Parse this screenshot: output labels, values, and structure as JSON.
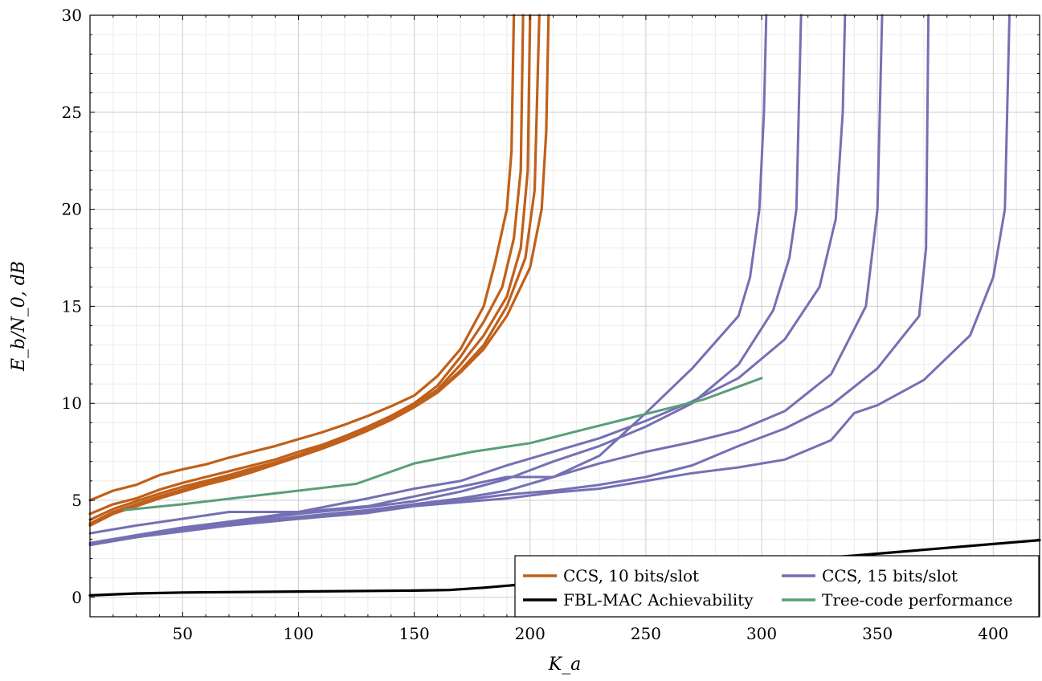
{
  "chart_data": {
    "type": "line",
    "xlabel": "K_a",
    "ylabel": "E_b/N_0, dB",
    "xlim": [
      10,
      420
    ],
    "ylim": [
      -1,
      30
    ],
    "xticks": [
      50,
      100,
      150,
      200,
      250,
      300,
      350,
      400
    ],
    "yticks": [
      0,
      5,
      10,
      15,
      20,
      25,
      30
    ],
    "grid": true,
    "minor_grid": true,
    "legend_position": "bottom-right",
    "colors": {
      "ccs10": "#c0601a",
      "ccs15": "#7570b3",
      "fbl": "#000000",
      "tree": "#5a9e78"
    },
    "legend": [
      {
        "label": "CCS, 10 bits/slot",
        "color": "#c0601a"
      },
      {
        "label": "CCS, 15 bits/slot",
        "color": "#7570b3"
      },
      {
        "label": "FBL-MAC Achievability",
        "color": "#000000"
      },
      {
        "label": "Tree-code performance",
        "color": "#5a9e78"
      }
    ],
    "series": [
      {
        "group": "ccs10",
        "x": [
          10,
          20,
          30,
          40,
          50,
          60,
          70,
          80,
          90,
          100,
          110,
          120,
          130,
          140,
          150,
          160,
          170,
          180,
          185,
          190,
          192,
          193
        ],
        "y": [
          5.0,
          5.5,
          5.8,
          6.3,
          6.6,
          6.85,
          7.2,
          7.5,
          7.8,
          8.15,
          8.5,
          8.9,
          9.35,
          9.85,
          10.4,
          11.4,
          12.8,
          15.0,
          17.3,
          20.0,
          23.0,
          30.0
        ]
      },
      {
        "group": "ccs10",
        "x": [
          10,
          20,
          30,
          40,
          50,
          60,
          70,
          80,
          90,
          100,
          110,
          120,
          130,
          140,
          150,
          160,
          170,
          180,
          188,
          193,
          196,
          197
        ],
        "y": [
          4.3,
          4.8,
          5.1,
          5.55,
          5.9,
          6.2,
          6.5,
          6.8,
          7.1,
          7.5,
          7.85,
          8.3,
          8.8,
          9.35,
          10.0,
          10.9,
          12.4,
          14.2,
          16.0,
          18.5,
          22.0,
          30.0
        ]
      },
      {
        "group": "ccs10",
        "x": [
          10,
          20,
          30,
          40,
          50,
          60,
          70,
          80,
          90,
          100,
          110,
          120,
          130,
          140,
          150,
          160,
          170,
          180,
          190,
          196,
          199,
          200
        ],
        "y": [
          4.0,
          4.55,
          4.95,
          5.35,
          5.7,
          6.0,
          6.3,
          6.65,
          6.95,
          7.35,
          7.75,
          8.2,
          8.7,
          9.25,
          9.9,
          10.7,
          12.0,
          13.5,
          15.5,
          18.0,
          22.0,
          30.0
        ]
      },
      {
        "group": "ccs10",
        "x": [
          10,
          20,
          30,
          40,
          50,
          60,
          70,
          80,
          90,
          100,
          110,
          120,
          130,
          140,
          150,
          160,
          170,
          180,
          190,
          198,
          202,
          204
        ],
        "y": [
          3.8,
          4.4,
          4.8,
          5.2,
          5.55,
          5.9,
          6.2,
          6.55,
          6.9,
          7.3,
          7.7,
          8.15,
          8.65,
          9.2,
          9.85,
          10.6,
          11.7,
          13.0,
          15.0,
          17.5,
          21.0,
          30.0
        ]
      },
      {
        "group": "ccs10",
        "x": [
          10,
          20,
          30,
          40,
          50,
          60,
          70,
          80,
          90,
          100,
          110,
          120,
          130,
          140,
          150,
          160,
          170,
          180,
          190,
          200,
          205,
          207,
          208
        ],
        "y": [
          3.7,
          4.3,
          4.7,
          5.1,
          5.45,
          5.8,
          6.1,
          6.45,
          6.85,
          7.25,
          7.65,
          8.1,
          8.6,
          9.15,
          9.8,
          10.55,
          11.6,
          12.8,
          14.5,
          17.0,
          20.0,
          24.0,
          30.0
        ]
      },
      {
        "group": "ccs15",
        "x": [
          10,
          30,
          50,
          70,
          100,
          130,
          150,
          170,
          190,
          210,
          230,
          250,
          270,
          290,
          295,
          299,
          301,
          302
        ],
        "y": [
          3.3,
          3.7,
          4.05,
          4.4,
          4.4,
          4.7,
          5.2,
          5.7,
          6.2,
          6.2,
          7.3,
          9.5,
          11.8,
          14.5,
          16.5,
          20.0,
          25.0,
          30.0
        ]
      },
      {
        "group": "ccs15",
        "x": [
          10,
          30,
          50,
          70,
          100,
          130,
          150,
          170,
          190,
          210,
          230,
          250,
          270,
          290,
          305,
          312,
          315,
          316,
          317
        ],
        "y": [
          2.7,
          3.2,
          3.55,
          3.85,
          4.3,
          4.65,
          4.95,
          5.45,
          6.1,
          7.0,
          7.8,
          8.8,
          10.0,
          12.0,
          14.8,
          17.5,
          20.0,
          25.0,
          30.0
        ]
      },
      {
        "group": "ccs15",
        "x": [
          10,
          30,
          50,
          70,
          100,
          130,
          150,
          170,
          190,
          210,
          230,
          250,
          270,
          290,
          310,
          325,
          332,
          335,
          336
        ],
        "y": [
          2.7,
          3.2,
          3.6,
          3.9,
          4.4,
          5.1,
          5.6,
          6.0,
          6.8,
          7.5,
          8.2,
          9.1,
          10.1,
          11.3,
          13.3,
          16.0,
          19.5,
          25.0,
          30.0
        ]
      },
      {
        "group": "ccs15",
        "x": [
          10,
          30,
          50,
          70,
          100,
          130,
          150,
          170,
          190,
          210,
          230,
          250,
          270,
          290,
          310,
          330,
          345,
          350,
          352
        ],
        "y": [
          2.8,
          3.2,
          3.5,
          3.8,
          4.15,
          4.5,
          4.8,
          5.1,
          5.5,
          6.2,
          6.9,
          7.5,
          8.0,
          8.6,
          9.6,
          11.5,
          15.0,
          20.0,
          30.0
        ]
      },
      {
        "group": "ccs15",
        "x": [
          10,
          30,
          50,
          70,
          100,
          130,
          150,
          170,
          190,
          210,
          230,
          250,
          270,
          290,
          310,
          330,
          350,
          362,
          368,
          371,
          372
        ],
        "y": [
          2.7,
          3.1,
          3.45,
          3.7,
          4.05,
          4.4,
          4.75,
          5.0,
          5.3,
          5.5,
          5.8,
          6.2,
          6.8,
          7.8,
          8.7,
          9.9,
          11.8,
          13.6,
          14.5,
          18.0,
          30.0
        ]
      },
      {
        "group": "ccs15",
        "x": [
          10,
          30,
          50,
          70,
          100,
          130,
          150,
          170,
          190,
          210,
          230,
          250,
          270,
          290,
          310,
          330,
          340,
          350,
          370,
          390,
          400,
          405,
          407
        ],
        "y": [
          2.7,
          3.1,
          3.4,
          3.7,
          4.05,
          4.35,
          4.7,
          4.9,
          5.1,
          5.4,
          5.6,
          6.0,
          6.4,
          6.7,
          7.1,
          8.1,
          9.5,
          9.9,
          11.2,
          13.5,
          16.5,
          20.0,
          30.0
        ]
      },
      {
        "group": "fbl",
        "x": [
          10,
          30,
          50,
          100,
          150,
          165,
          180,
          200,
          230,
          270,
          300,
          340,
          380,
          420
        ],
        "y": [
          0.1,
          0.2,
          0.25,
          0.3,
          0.35,
          0.38,
          0.5,
          0.7,
          1.0,
          1.45,
          1.8,
          2.15,
          2.55,
          2.95
        ]
      },
      {
        "group": "tree",
        "x": [
          25,
          50,
          75,
          100,
          125,
          150,
          175,
          200,
          225,
          250,
          275,
          300
        ],
        "y": [
          4.5,
          4.8,
          5.15,
          5.5,
          5.85,
          6.9,
          7.5,
          7.95,
          8.7,
          9.45,
          10.2,
          11.3
        ]
      }
    ]
  }
}
